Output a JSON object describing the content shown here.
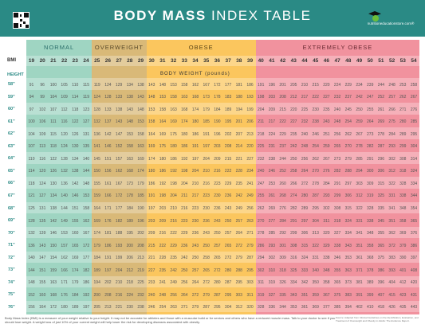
{
  "header": {
    "title_bold": "BODY MASS",
    "title_light": "INDEX TABLE",
    "logo_text": "nutritioneducationstore.com®"
  },
  "colors": {
    "header": "#2a8a85",
    "normal": "#9fd5c2",
    "overweight": "#d9b978",
    "obese": "#fbc65e",
    "extremely_obese": "#f1929e"
  },
  "categories": [
    {
      "label": "NORMAL",
      "bmi_from": 19,
      "bmi_to": 24
    },
    {
      "label": "OVERWEIGHT",
      "bmi_from": 25,
      "bmi_to": 29
    },
    {
      "label": "OBESE",
      "bmi_from": 30,
      "bmi_to": 39
    },
    {
      "label": "EXTREMELY OBESE",
      "bmi_from": 40,
      "bmi_to": 54
    }
  ],
  "labels": {
    "bmi": "BMI",
    "height": "HEIGHT",
    "body_weight": "BODY WEIGHT (pounds)"
  },
  "bmi_values": [
    19,
    20,
    21,
    22,
    23,
    24,
    25,
    26,
    27,
    28,
    29,
    30,
    31,
    32,
    33,
    34,
    35,
    36,
    37,
    38,
    39,
    40,
    41,
    42,
    43,
    44,
    45,
    46,
    47,
    48,
    49,
    50,
    51,
    52,
    53,
    54
  ],
  "heights": [
    "58\"",
    "59\"",
    "60\"",
    "61\"",
    "62\"",
    "63\"",
    "64\"",
    "65\"",
    "66\"",
    "67\"",
    "68\"",
    "69\"",
    "70\"",
    "71\"",
    "72\"",
    "73\"",
    "74\"",
    "75\"",
    "76\""
  ],
  "weights": [
    [
      91,
      96,
      100,
      105,
      110,
      115,
      119,
      124,
      129,
      134,
      138,
      143,
      148,
      153,
      158,
      162,
      167,
      172,
      177,
      181,
      186,
      191,
      196,
      201,
      205,
      210,
      215,
      220,
      224,
      229,
      234,
      239,
      244,
      248,
      253,
      258
    ],
    [
      94,
      99,
      104,
      109,
      114,
      119,
      124,
      128,
      133,
      138,
      143,
      148,
      153,
      158,
      163,
      168,
      173,
      178,
      183,
      188,
      193,
      198,
      203,
      208,
      212,
      217,
      222,
      227,
      232,
      237,
      242,
      247,
      252,
      257,
      262,
      267
    ],
    [
      97,
      102,
      107,
      112,
      118,
      123,
      128,
      133,
      138,
      143,
      148,
      153,
      158,
      163,
      168,
      174,
      179,
      184,
      189,
      194,
      199,
      204,
      209,
      215,
      220,
      225,
      230,
      235,
      240,
      245,
      250,
      255,
      261,
      266,
      271,
      276
    ],
    [
      100,
      106,
      111,
      116,
      122,
      127,
      132,
      137,
      143,
      148,
      153,
      158,
      164,
      169,
      174,
      180,
      185,
      190,
      195,
      201,
      206,
      211,
      217,
      222,
      227,
      232,
      238,
      243,
      248,
      254,
      259,
      264,
      269,
      275,
      280,
      285
    ],
    [
      104,
      109,
      115,
      120,
      126,
      131,
      136,
      142,
      147,
      153,
      158,
      164,
      169,
      175,
      180,
      186,
      191,
      196,
      202,
      207,
      213,
      218,
      224,
      229,
      235,
      240,
      246,
      251,
      256,
      262,
      267,
      273,
      278,
      284,
      289,
      295
    ],
    [
      107,
      113,
      118,
      124,
      130,
      135,
      141,
      146,
      152,
      158,
      163,
      169,
      175,
      180,
      186,
      191,
      197,
      203,
      208,
      214,
      220,
      225,
      231,
      237,
      242,
      248,
      254,
      259,
      265,
      270,
      278,
      282,
      287,
      293,
      299,
      304
    ],
    [
      110,
      116,
      122,
      128,
      134,
      140,
      145,
      151,
      157,
      163,
      169,
      174,
      180,
      186,
      192,
      197,
      204,
      209,
      215,
      221,
      227,
      232,
      238,
      244,
      250,
      256,
      262,
      267,
      273,
      279,
      285,
      291,
      296,
      302,
      308,
      314
    ],
    [
      114,
      120,
      126,
      132,
      138,
      144,
      150,
      156,
      162,
      168,
      174,
      180,
      186,
      192,
      198,
      204,
      210,
      216,
      222,
      228,
      234,
      240,
      246,
      252,
      258,
      264,
      270,
      276,
      282,
      288,
      294,
      300,
      306,
      312,
      318,
      324
    ],
    [
      118,
      124,
      130,
      136,
      142,
      148,
      155,
      161,
      167,
      173,
      179,
      186,
      192,
      198,
      204,
      210,
      216,
      223,
      229,
      235,
      241,
      247,
      253,
      260,
      266,
      272,
      278,
      284,
      291,
      297,
      303,
      309,
      315,
      322,
      328,
      334
    ],
    [
      121,
      127,
      134,
      140,
      146,
      153,
      159,
      166,
      172,
      178,
      185,
      191,
      198,
      204,
      211,
      217,
      223,
      230,
      236,
      242,
      249,
      255,
      261,
      268,
      274,
      280,
      287,
      293,
      299,
      306,
      312,
      319,
      325,
      331,
      338,
      344
    ],
    [
      125,
      131,
      138,
      144,
      151,
      158,
      164,
      171,
      177,
      184,
      190,
      197,
      203,
      210,
      216,
      223,
      230,
      236,
      243,
      249,
      256,
      262,
      269,
      276,
      282,
      289,
      295,
      302,
      308,
      315,
      322,
      328,
      335,
      341,
      348,
      354
    ],
    [
      128,
      135,
      142,
      149,
      155,
      162,
      169,
      176,
      182,
      189,
      196,
      203,
      209,
      216,
      223,
      230,
      236,
      243,
      250,
      257,
      263,
      270,
      277,
      284,
      291,
      297,
      304,
      311,
      318,
      324,
      331,
      338,
      345,
      351,
      358,
      365
    ],
    [
      132,
      139,
      146,
      153,
      160,
      167,
      174,
      181,
      188,
      195,
      202,
      209,
      216,
      222,
      229,
      236,
      243,
      250,
      257,
      264,
      271,
      278,
      285,
      292,
      299,
      306,
      313,
      320,
      327,
      334,
      341,
      348,
      355,
      362,
      369,
      376
    ],
    [
      136,
      143,
      150,
      157,
      165,
      172,
      179,
      186,
      193,
      200,
      208,
      215,
      222,
      229,
      236,
      243,
      250,
      257,
      265,
      272,
      279,
      286,
      293,
      301,
      308,
      315,
      322,
      329,
      338,
      343,
      351,
      358,
      365,
      372,
      379,
      386
    ],
    [
      140,
      147,
      154,
      162,
      169,
      177,
      184,
      191,
      199,
      206,
      213,
      221,
      228,
      235,
      242,
      250,
      258,
      265,
      272,
      279,
      287,
      294,
      302,
      309,
      316,
      324,
      331,
      338,
      346,
      353,
      361,
      368,
      375,
      383,
      390,
      397
    ],
    [
      144,
      151,
      159,
      166,
      174,
      182,
      189,
      197,
      204,
      212,
      219,
      227,
      235,
      242,
      250,
      257,
      265,
      272,
      280,
      288,
      295,
      302,
      310,
      318,
      325,
      333,
      340,
      348,
      355,
      363,
      371,
      378,
      386,
      393,
      401,
      408
    ],
    [
      148,
      155,
      163,
      171,
      179,
      186,
      194,
      202,
      210,
      218,
      225,
      233,
      241,
      249,
      256,
      264,
      272,
      280,
      287,
      295,
      303,
      311,
      319,
      326,
      334,
      342,
      350,
      358,
      365,
      373,
      381,
      389,
      396,
      404,
      412,
      420
    ],
    [
      152,
      160,
      168,
      176,
      184,
      192,
      200,
      208,
      216,
      224,
      232,
      240,
      248,
      256,
      264,
      272,
      279,
      287,
      295,
      303,
      311,
      319,
      327,
      335,
      343,
      351,
      359,
      367,
      375,
      383,
      391,
      399,
      407,
      415,
      423,
      431
    ],
    [
      156,
      164,
      172,
      180,
      189,
      197,
      205,
      213,
      221,
      230,
      238,
      246,
      254,
      263,
      271,
      279,
      287,
      295,
      304,
      312,
      320,
      328,
      336,
      344,
      353,
      361,
      369,
      377,
      385,
      394,
      402,
      410,
      418,
      426,
      435,
      443
    ]
  ],
  "footer": {
    "text": "Body Mass Index (BMI) is a measure of your weight relative to your height. It may not be accurate for athletes and those with a muscular build or for seniors and others who have a reduced muscle mass. Talk to your doctor to see if you should lose weight. A weight loss of just 10% of your current weight will help lower the risk for developing diseases associated with obesity.",
    "source": "Source: Adapted from Clinical Guidelines on the Identification, Evaluation, and Treatment of Overweight and Obesity in Adults: The Evidence Report."
  }
}
